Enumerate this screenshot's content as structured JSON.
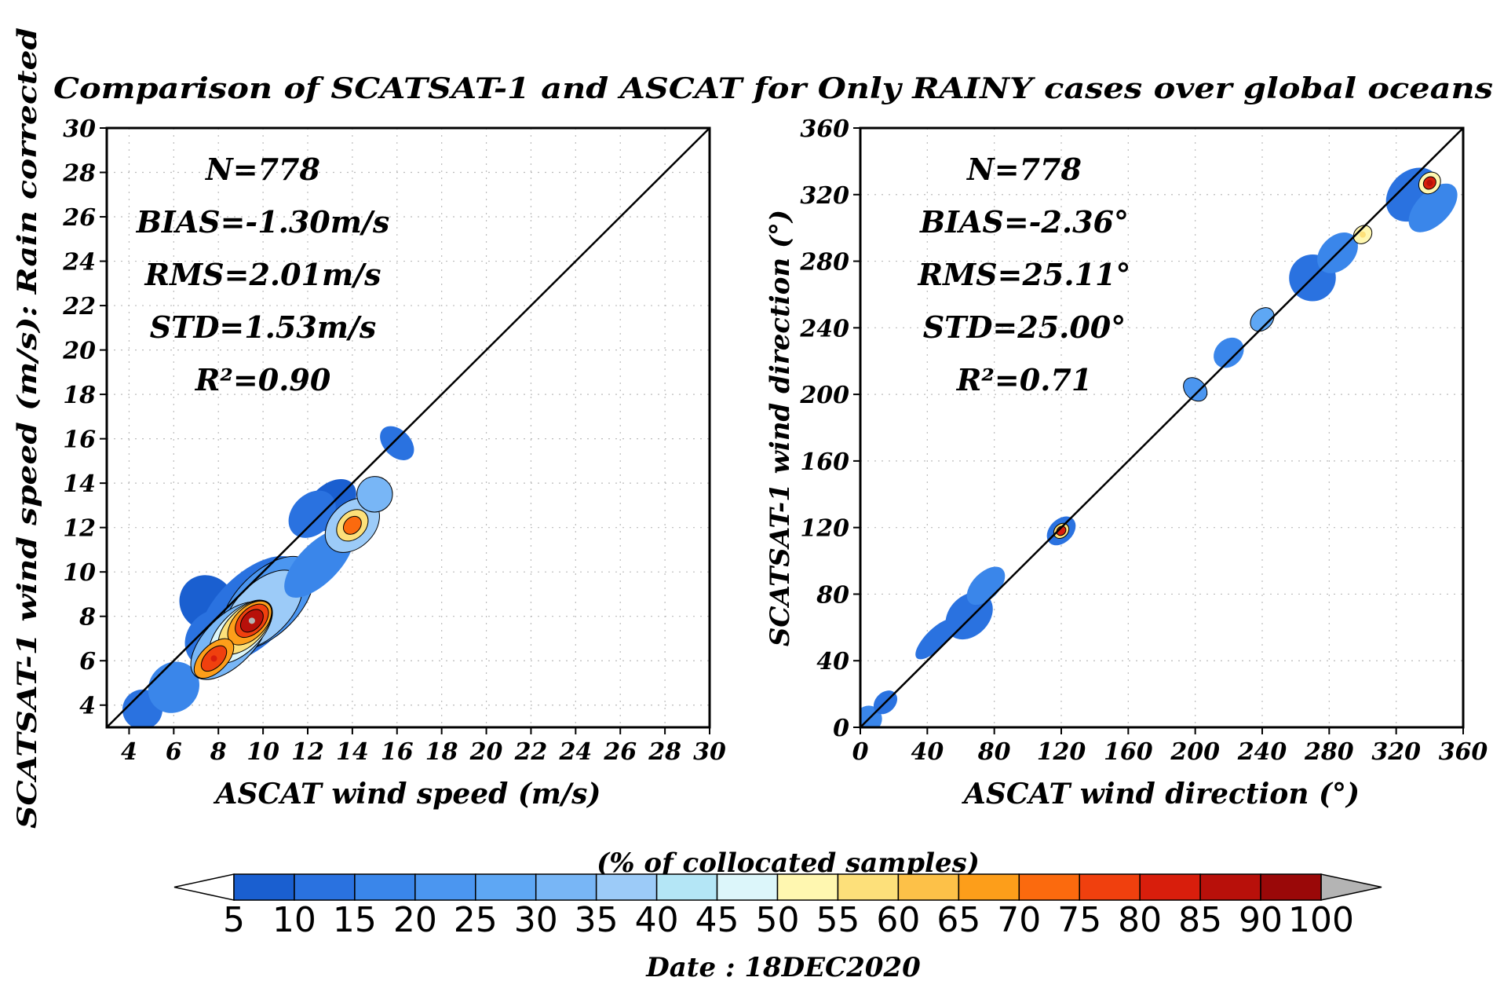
{
  "figure": {
    "title": "Comparison of SCATSAT-1 and ASCAT for Only RAINY cases over global oceans",
    "date_label": "Date : 18DEC2020"
  },
  "colorbar": {
    "label": "(% of collocated samples)",
    "levels": [
      "5",
      "10",
      "15",
      "20",
      "25",
      "30",
      "35",
      "40",
      "45",
      "50",
      "55",
      "60",
      "65",
      "70",
      "75",
      "80",
      "85",
      "90",
      "100"
    ],
    "colors": [
      "#1a5fd0",
      "#2a72e0",
      "#3a86ea",
      "#4b96f0",
      "#5ea7f4",
      "#78b6f6",
      "#9ccbf8",
      "#b4e6f6",
      "#dcf6fa",
      "#fff7b0",
      "#fde07a",
      "#fdc148",
      "#fd9e1a",
      "#fb6a0e",
      "#f0400e",
      "#d81e0c",
      "#b8100a",
      "#9a0808"
    ],
    "low_end_color": "#ffffff",
    "high_end_color": "#b4b4b4"
  },
  "chart_data": [
    {
      "type": "heatmap",
      "panel": "left",
      "xlabel": "ASCAT wind speed (m/s)",
      "ylabel": "SCATSAT-1 wind speed (m/s): Rain corrected",
      "xlim": [
        3,
        30
      ],
      "ylim": [
        3,
        30
      ],
      "xticks": [
        "4",
        "6",
        "8",
        "10",
        "12",
        "14",
        "16",
        "18",
        "20",
        "22",
        "24",
        "26",
        "28",
        "30"
      ],
      "yticks": [
        "4",
        "6",
        "8",
        "10",
        "12",
        "14",
        "16",
        "18",
        "20",
        "22",
        "24",
        "26",
        "28",
        "30"
      ],
      "grid": true,
      "one_to_one_line": true,
      "stats": [
        "N=778",
        "BIAS=-1.30m/s",
        "RMS=2.01m/s",
        "STD=1.53m/s",
        "R²=0.90"
      ],
      "density_peaks": [
        {
          "x": 9.5,
          "y": 7.8,
          "percent": 100
        },
        {
          "x": 7.8,
          "y": 6.1,
          "percent": 80
        },
        {
          "x": 14.0,
          "y": 12.1,
          "percent": 70
        }
      ]
    },
    {
      "type": "heatmap",
      "panel": "right",
      "xlabel": "ASCAT wind direction (°)",
      "ylabel": "SCATSAT-1 wind direction (°)",
      "xlim": [
        0,
        360
      ],
      "ylim": [
        0,
        360
      ],
      "xticks": [
        "0",
        "40",
        "80",
        "120",
        "160",
        "200",
        "240",
        "280",
        "320",
        "360"
      ],
      "yticks": [
        "0",
        "40",
        "80",
        "120",
        "160",
        "200",
        "240",
        "280",
        "320",
        "360"
      ],
      "grid": true,
      "one_to_one_line": true,
      "stats": [
        "N=778",
        "BIAS=-2.36°",
        "RMS=25.11°",
        "STD=25.00°",
        "R²=0.71"
      ],
      "density_peaks": [
        {
          "x": 340,
          "y": 327,
          "percent": 85
        },
        {
          "x": 120,
          "y": 118,
          "percent": 80
        },
        {
          "x": 300,
          "y": 296,
          "percent": 55
        }
      ]
    }
  ]
}
